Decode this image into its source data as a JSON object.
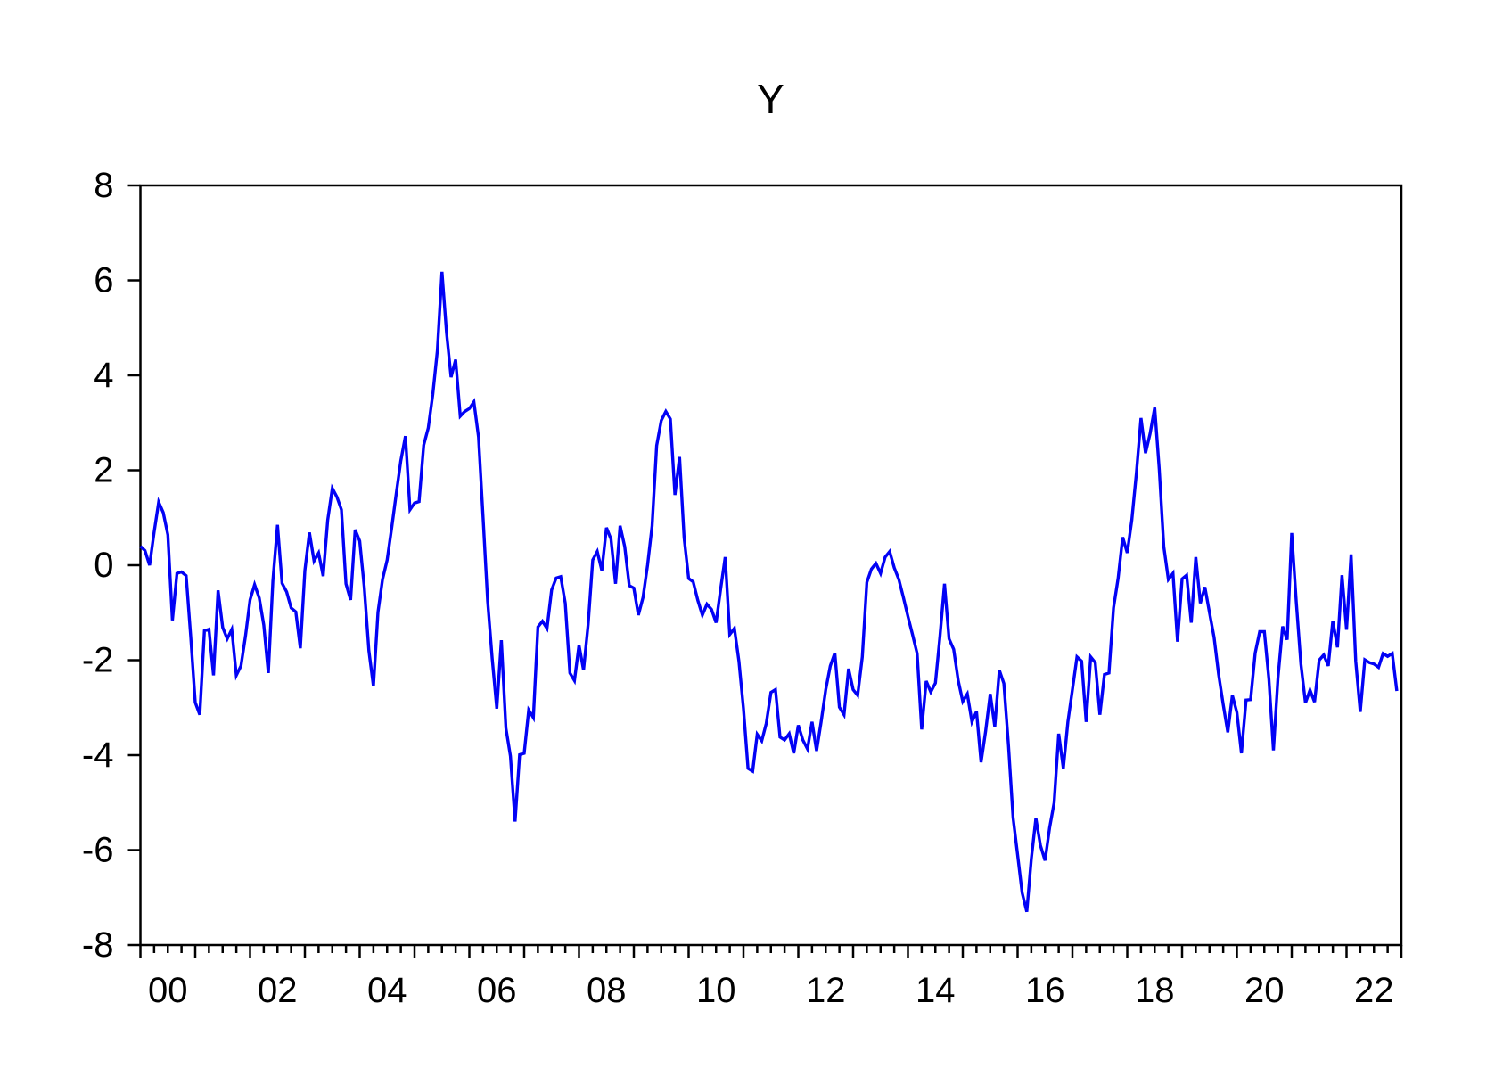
{
  "title": "Y",
  "chart_data": {
    "type": "line",
    "title": "Y",
    "series_name": "Y",
    "frequency": "monthly",
    "x_start": "2000M01",
    "x_end": "2022M12",
    "xlabel": "",
    "ylabel": "",
    "ylim": [
      -8,
      8
    ],
    "grid": false,
    "legend_position": "none",
    "line_color": "#0202f5",
    "axis_color": "#000000",
    "y_tick_labels": [
      "8",
      "6",
      "4",
      "2",
      "0",
      "-2",
      "-4",
      "-6",
      "-8"
    ],
    "y_tick_values": [
      8,
      6,
      4,
      2,
      0,
      -2,
      -4,
      -6,
      -8
    ],
    "x_tick_labels": [
      "00",
      "02",
      "04",
      "06",
      "08",
      "10",
      "12",
      "14",
      "16",
      "18",
      "20",
      "22"
    ],
    "x_tick_years": [
      2000,
      2002,
      2004,
      2006,
      2008,
      2010,
      2012,
      2014,
      2016,
      2018,
      2020,
      2022
    ],
    "values": [
      0.4,
      0.31,
      0.0,
      0.7,
      1.33,
      1.11,
      0.64,
      -1.16,
      -0.17,
      -0.14,
      -0.22,
      -1.49,
      -2.89,
      -3.15,
      -1.38,
      -1.35,
      -2.32,
      -0.53,
      -1.31,
      -1.55,
      -1.35,
      -2.32,
      -2.12,
      -1.49,
      -0.73,
      -0.41,
      -0.69,
      -1.26,
      -2.27,
      -0.33,
      0.85,
      -0.38,
      -0.56,
      -0.9,
      -0.98,
      -1.75,
      -0.11,
      0.69,
      0.09,
      0.26,
      -0.23,
      0.95,
      1.62,
      1.44,
      1.17,
      -0.39,
      -0.73,
      0.75,
      0.51,
      -0.46,
      -1.8,
      -2.55,
      -0.99,
      -0.3,
      0.11,
      0.79,
      1.51,
      2.2,
      2.72,
      1.17,
      1.31,
      1.34,
      2.53,
      2.89,
      3.6,
      4.52,
      6.18,
      4.9,
      3.96,
      4.33,
      3.14,
      3.24,
      3.3,
      3.44,
      2.7,
      1.0,
      -0.75,
      -1.96,
      -3.02,
      -1.58,
      -3.43,
      -4.02,
      -5.4,
      -3.99,
      -3.96,
      -3.05,
      -3.21,
      -1.3,
      -1.18,
      -1.33,
      -0.52,
      -0.27,
      -0.24,
      -0.8,
      -2.27,
      -2.43,
      -1.68,
      -2.21,
      -1.24,
      0.11,
      0.29,
      -0.11,
      0.79,
      0.55,
      -0.39,
      0.83,
      0.39,
      -0.43,
      -0.48,
      -1.05,
      -0.68,
      0.0,
      0.83,
      2.52,
      3.05,
      3.24,
      3.08,
      1.48,
      2.28,
      0.58,
      -0.28,
      -0.35,
      -0.74,
      -1.05,
      -0.82,
      -0.93,
      -1.21,
      -0.5,
      0.17,
      -1.46,
      -1.33,
      -2.02,
      -3.02,
      -4.28,
      -4.34,
      -3.56,
      -3.7,
      -3.33,
      -2.68,
      -2.62,
      -3.62,
      -3.68,
      -3.55,
      -3.96,
      -3.37,
      -3.68,
      -3.87,
      -3.3,
      -3.91,
      -3.3,
      -2.62,
      -2.12,
      -1.85,
      -2.99,
      -3.15,
      -2.18,
      -2.62,
      -2.74,
      -1.93,
      -0.36,
      -0.08,
      0.04,
      -0.17,
      0.17,
      0.29,
      -0.05,
      -0.3,
      -0.68,
      -1.08,
      -1.46,
      -1.86,
      -3.46,
      -2.44,
      -2.67,
      -2.48,
      -1.5,
      -0.39,
      -1.55,
      -1.77,
      -2.43,
      -2.87,
      -2.71,
      -3.3,
      -3.08,
      -4.15,
      -3.5,
      -2.71,
      -3.4,
      -2.21,
      -2.49,
      -3.8,
      -5.31,
      -6.1,
      -6.9,
      -7.3,
      -6.18,
      -5.33,
      -5.9,
      -6.22,
      -5.53,
      -5.0,
      -3.55,
      -4.28,
      -3.3,
      -2.62,
      -1.93,
      -2.02,
      -3.3,
      -1.93,
      -2.05,
      -3.15,
      -2.3,
      -2.27,
      -0.9,
      -0.27,
      0.59,
      0.26,
      0.95,
      1.95,
      3.1,
      2.36,
      2.77,
      3.32,
      2.02,
      0.39,
      -0.3,
      -0.17,
      -1.61,
      -0.29,
      -0.21,
      -1.21,
      0.17,
      -0.8,
      -0.46,
      -1.0,
      -1.52,
      -2.3,
      -2.93,
      -3.52,
      -2.74,
      -3.1,
      -3.96,
      -2.84,
      -2.83,
      -1.85,
      -1.4,
      -1.4,
      -2.4,
      -3.9,
      -2.37,
      -1.29,
      -1.57,
      0.68,
      -0.77,
      -2.08,
      -2.9,
      -2.63,
      -2.88,
      -2.0,
      -1.89,
      -2.12,
      -1.17,
      -1.73,
      -0.21,
      -1.36,
      0.23,
      -2.02,
      -3.09,
      -1.99,
      -2.05,
      -2.08,
      -2.15,
      -1.86,
      -1.92,
      -1.86,
      -2.65
    ]
  }
}
